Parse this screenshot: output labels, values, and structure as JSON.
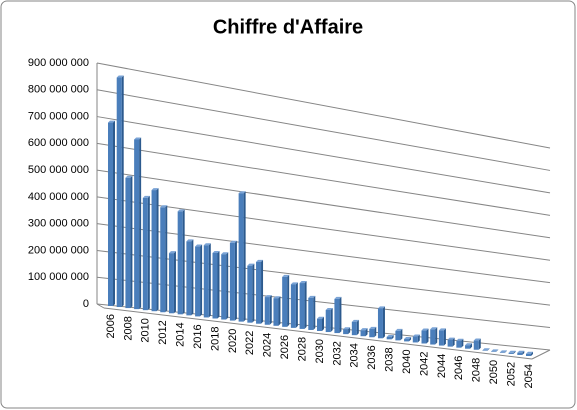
{
  "chart_data": {
    "type": "bar3d",
    "title": "Chiffre d'Affaire",
    "categories": [
      "2006",
      null,
      "2008",
      null,
      "2010",
      null,
      "2012",
      null,
      "2014",
      null,
      "2016",
      null,
      "2018",
      null,
      "2020",
      null,
      "2022",
      null,
      "2024",
      null,
      "2026",
      null,
      "2028",
      null,
      "2030",
      null,
      "2032",
      null,
      "2034",
      null,
      "2036",
      null,
      "2038",
      null,
      "2040",
      null,
      "2042",
      null,
      "2044",
      null,
      "2046",
      null,
      "2048",
      null,
      "2050",
      null,
      "2052",
      null,
      "2054"
    ],
    "values": [
      685000000,
      860000000,
      490000000,
      640000000,
      425000000,
      460000000,
      400000000,
      230000000,
      395000000,
      285000000,
      270000000,
      280000000,
      255000000,
      255000000,
      305000000,
      505000000,
      225000000,
      245000000,
      110000000,
      110000000,
      200000000,
      175000000,
      185000000,
      130000000,
      50000000,
      90000000,
      140000000,
      20000000,
      55000000,
      25000000,
      35000000,
      125000000,
      10000000,
      40000000,
      10000000,
      25000000,
      55000000,
      65000000,
      65000000,
      30000000,
      30000000,
      15000000,
      40000000,
      0,
      0,
      0,
      5000000,
      10000000,
      10000000
    ],
    "color": "#4a7ebb",
    "ylim": [
      0,
      900000000
    ],
    "yticks": [
      0,
      {
        "value": 100000000,
        "label": "100 000 000"
      },
      {
        "value": 200000000,
        "label": "200 000 000"
      },
      {
        "value": 300000000,
        "label": "300 000 000"
      },
      {
        "value": 400000000,
        "label": "400 000 000"
      },
      {
        "value": 500000000,
        "label": "500 000 000"
      },
      {
        "value": 600000000,
        "label": "600 000 000"
      },
      {
        "value": 700000000,
        "label": "700 000 000"
      },
      {
        "value": 800000000,
        "label": "800 000 000"
      },
      {
        "value": 900000000,
        "label": "900 000 000"
      }
    ],
    "grid": true
  }
}
